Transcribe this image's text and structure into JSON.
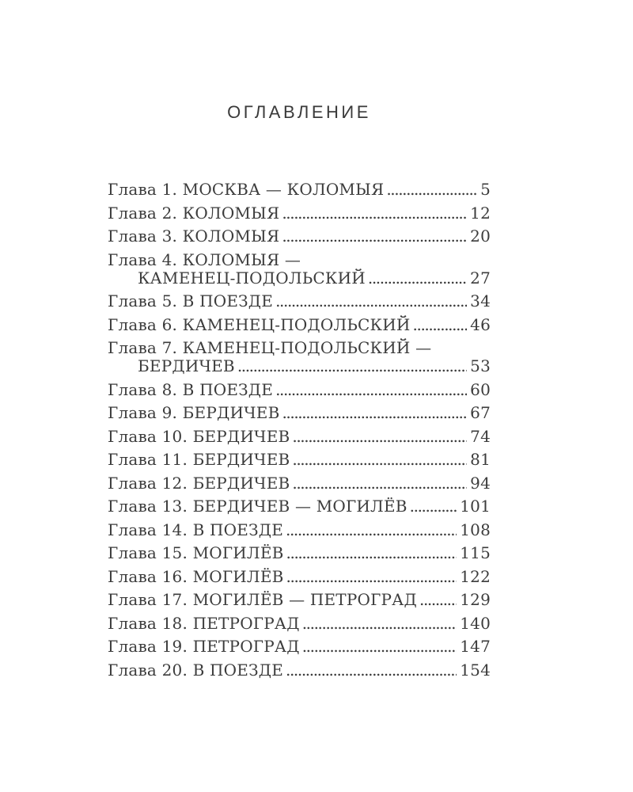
{
  "page": {
    "title": "ОГЛАВЛЕНИЕ"
  },
  "toc": {
    "rows": [
      {
        "text": "Глава 1. МОСКВА — КОЛОМЫЯ",
        "page": "5"
      },
      {
        "text": "Глава 2. КОЛОМЫЯ",
        "page": "12"
      },
      {
        "text": "Глава 3. КОЛОМЫЯ",
        "page": "20"
      },
      {
        "text": "Глава 4. КОЛОМЫЯ —",
        "page": ""
      },
      {
        "text": "КАМЕНЕЦ-ПОДОЛЬСКИЙ",
        "page": "27"
      },
      {
        "text": "Глава 5. В ПОЕЗДЕ",
        "page": "34"
      },
      {
        "text": "Глава 6. КАМЕНЕЦ-ПОДОЛЬСКИЙ",
        "page": "46"
      },
      {
        "text": "Глава 7. КАМЕНЕЦ-ПОДОЛЬСКИЙ —",
        "page": ""
      },
      {
        "text": "БЕРДИЧЕВ",
        "page": "53"
      },
      {
        "text": "Глава 8. В ПОЕЗДЕ",
        "page": "60"
      },
      {
        "text": "Глава 9. БЕРДИЧЕВ",
        "page": "67"
      },
      {
        "text": "Глава 10. БЕРДИЧЕВ",
        "page": "74"
      },
      {
        "text": "Глава 11. БЕРДИЧЕВ",
        "page": "81"
      },
      {
        "text": "Глава 12. БЕРДИЧЕВ",
        "page": "94"
      },
      {
        "text": "Глава 13. БЕРДИЧЕВ — МОГИЛЁВ",
        "page": "101"
      },
      {
        "text": "Глава 14. В ПОЕЗДЕ",
        "page": "108"
      },
      {
        "text": "Глава 15. МОГИЛЁВ",
        "page": "115"
      },
      {
        "text": "Глава 16. МОГИЛЁВ",
        "page": "122"
      },
      {
        "text": "Глава 17. МОГИЛЁВ — ПЕТРОГРАД",
        "page": "129"
      },
      {
        "text": "Глава 18. ПЕТРОГРАД",
        "page": "140"
      },
      {
        "text": "Глава 19. ПЕТРОГРАД",
        "page": "147"
      },
      {
        "text": "Глава 20. В ПОЕЗДЕ",
        "page": "154"
      }
    ]
  }
}
